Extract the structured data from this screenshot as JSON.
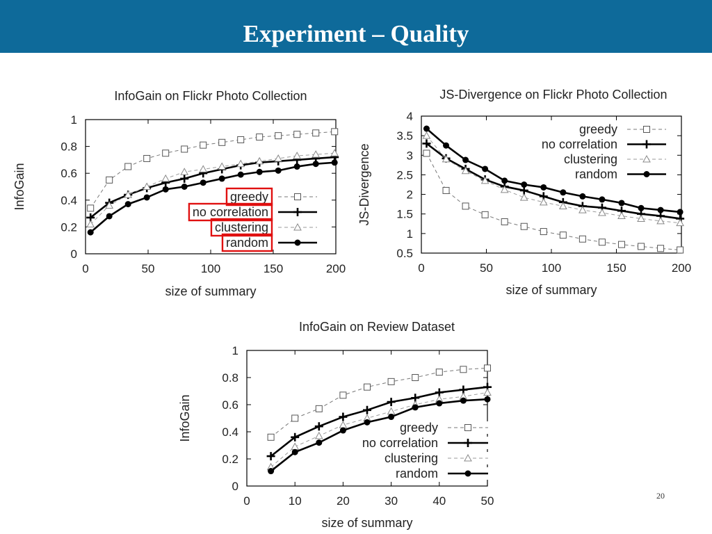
{
  "slide": {
    "title": "Experiment – Quality",
    "page_number": "20"
  },
  "colors": {
    "header_bg": "#0e6a9a",
    "highlight_box": "#e01010"
  },
  "chart_data": [
    {
      "type": "line",
      "title": "InfoGain on Flickr Photo Collection",
      "xlabel": "size of summary",
      "ylabel": "InfoGain",
      "xlim": [
        0,
        200
      ],
      "ylim": [
        0,
        1
      ],
      "xticks": [
        0,
        50,
        100,
        150,
        200
      ],
      "yticks": [
        0,
        0.2,
        0.4,
        0.6,
        0.8,
        1
      ],
      "ytick_labels": [
        "0",
        "0.2",
        "0.4",
        "0.6",
        "0.8",
        "1"
      ],
      "grid": false,
      "legend_position": "bottom-right",
      "legend_highlighted": true,
      "x": [
        4,
        19,
        34,
        49,
        64,
        79,
        94,
        109,
        124,
        139,
        154,
        169,
        184,
        199
      ],
      "series": [
        {
          "name": "greedy",
          "marker": "square-open",
          "line": "dashed",
          "values": [
            0.34,
            0.55,
            0.65,
            0.71,
            0.75,
            0.78,
            0.81,
            0.83,
            0.85,
            0.87,
            0.88,
            0.89,
            0.9,
            0.91
          ]
        },
        {
          "name": "no correlation",
          "marker": "plus",
          "line": "solid",
          "values": [
            0.27,
            0.38,
            0.44,
            0.49,
            0.53,
            0.56,
            0.6,
            0.63,
            0.66,
            0.68,
            0.69,
            0.7,
            0.71,
            0.72
          ]
        },
        {
          "name": "clustering",
          "marker": "triangle-open",
          "line": "dashed",
          "values": [
            0.22,
            0.36,
            0.44,
            0.5,
            0.56,
            0.61,
            0.63,
            0.65,
            0.67,
            0.69,
            0.71,
            0.73,
            0.74,
            0.75
          ]
        },
        {
          "name": "random",
          "marker": "circle-filled",
          "line": "solid",
          "values": [
            0.16,
            0.28,
            0.37,
            0.42,
            0.48,
            0.5,
            0.53,
            0.56,
            0.59,
            0.61,
            0.62,
            0.65,
            0.67,
            0.68
          ]
        }
      ]
    },
    {
      "type": "line",
      "title": "JS-Divergence on Flickr Photo Collection",
      "xlabel": "size of summary",
      "ylabel": "JS-Divergence",
      "xlim": [
        0,
        200
      ],
      "ylim": [
        0.5,
        4
      ],
      "xticks": [
        0,
        50,
        100,
        150,
        200
      ],
      "yticks": [
        0.5,
        1,
        1.5,
        2,
        2.5,
        3,
        3.5,
        4
      ],
      "ytick_labels": [
        "0.5",
        "1",
        "1.5",
        "2",
        "2.5",
        "3",
        "3.5",
        "4"
      ],
      "grid": false,
      "legend_position": "top-right",
      "legend_highlighted": false,
      "x": [
        4,
        19,
        34,
        49,
        64,
        79,
        94,
        109,
        124,
        139,
        154,
        169,
        184,
        199
      ],
      "series": [
        {
          "name": "greedy",
          "marker": "square-open",
          "line": "dashed",
          "values": [
            3.05,
            2.1,
            1.7,
            1.48,
            1.3,
            1.18,
            1.05,
            0.96,
            0.86,
            0.78,
            0.72,
            0.67,
            0.62,
            0.58
          ]
        },
        {
          "name": "no correlation",
          "marker": "plus",
          "line": "solid",
          "values": [
            3.3,
            2.92,
            2.65,
            2.38,
            2.2,
            2.1,
            1.95,
            1.8,
            1.7,
            1.66,
            1.58,
            1.5,
            1.45,
            1.38
          ]
        },
        {
          "name": "clustering",
          "marker": "triangle-open",
          "line": "dashed",
          "values": [
            3.5,
            2.9,
            2.6,
            2.35,
            2.12,
            1.92,
            1.8,
            1.7,
            1.6,
            1.53,
            1.45,
            1.38,
            1.32,
            1.27
          ]
        },
        {
          "name": "random",
          "marker": "circle-filled",
          "line": "solid",
          "values": [
            3.68,
            3.25,
            2.88,
            2.65,
            2.35,
            2.25,
            2.18,
            2.05,
            1.95,
            1.87,
            1.78,
            1.65,
            1.6,
            1.55
          ]
        }
      ]
    },
    {
      "type": "line",
      "title": "InfoGain on Review Dataset",
      "xlabel": "size of summary",
      "ylabel": "InfoGain",
      "xlim": [
        0,
        50
      ],
      "ylim": [
        0,
        1
      ],
      "xticks": [
        0,
        10,
        20,
        30,
        40,
        50
      ],
      "yticks": [
        0,
        0.2,
        0.4,
        0.6,
        0.8,
        1
      ],
      "ytick_labels": [
        "0",
        "0.2",
        "0.4",
        "0.6",
        "0.8",
        "1"
      ],
      "grid": false,
      "legend_position": "bottom-right",
      "legend_highlighted": false,
      "x": [
        5,
        10,
        15,
        20,
        25,
        30,
        35,
        40,
        45,
        50
      ],
      "series": [
        {
          "name": "greedy",
          "marker": "square-open",
          "line": "dashed",
          "values": [
            0.36,
            0.5,
            0.57,
            0.67,
            0.73,
            0.77,
            0.8,
            0.84,
            0.86,
            0.87
          ]
        },
        {
          "name": "no correlation",
          "marker": "plus",
          "line": "solid",
          "values": [
            0.22,
            0.36,
            0.44,
            0.51,
            0.56,
            0.62,
            0.65,
            0.69,
            0.71,
            0.73
          ]
        },
        {
          "name": "clustering",
          "marker": "triangle-open",
          "line": "dashed",
          "values": [
            0.14,
            0.29,
            0.37,
            0.45,
            0.5,
            0.55,
            0.6,
            0.64,
            0.66,
            0.69
          ]
        },
        {
          "name": "random",
          "marker": "circle-filled",
          "line": "solid",
          "values": [
            0.11,
            0.25,
            0.32,
            0.41,
            0.47,
            0.51,
            0.58,
            0.61,
            0.63,
            0.64
          ]
        }
      ]
    }
  ]
}
